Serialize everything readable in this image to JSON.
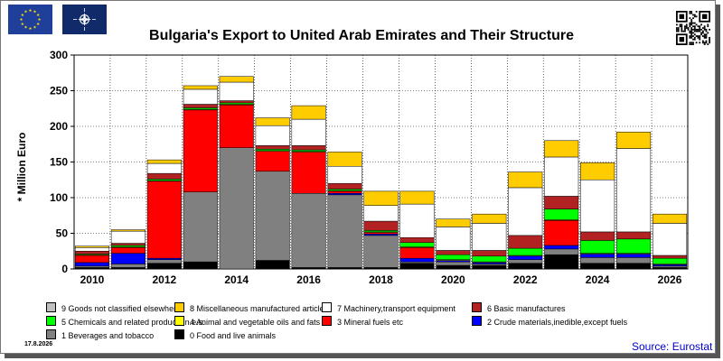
{
  "header": {
    "title": "Bulgaria's Export to United Arab Emirates and Their Structure"
  },
  "footer": {
    "date": "17.8.2026",
    "source": "Source: Eurostat"
  },
  "colors": {
    "background": "#ffffff",
    "plot_area": "#ffffff",
    "grid": "#000000",
    "source_text": "#0000cc",
    "eu_flag": "#1f3f9a",
    "eu_stars": "#ffdd00",
    "nato_flag": "#102a6a"
  },
  "icons": [
    "eu-flag-icon",
    "nato-flag-icon",
    "qr-code-icon"
  ],
  "chart_data": {
    "type": "bar",
    "stacked": true,
    "title": "Bulgaria's Export to United Arab Emirates and Their Structure",
    "xlabel": "",
    "ylabel": "* Million Euro",
    "ylim": [
      0,
      300
    ],
    "yticks": [
      0,
      50,
      100,
      150,
      200,
      250,
      300
    ],
    "grid": true,
    "legend_position": "bottom",
    "categories": [
      "2010",
      "2011",
      "2012",
      "2013",
      "2014",
      "2015",
      "2016",
      "2017",
      "2018",
      "2019",
      "2020",
      "2021",
      "2022",
      "2023",
      "2024",
      "2025",
      "2026"
    ],
    "xtick_labels": [
      "2010",
      "2012",
      "2014",
      "2016",
      "2018",
      "2020",
      "2022",
      "2024",
      "2026"
    ],
    "series": [
      {
        "name": "0 Food and live animals",
        "color": "#000000",
        "values": [
          2,
          2,
          8,
          10,
          0,
          12,
          2,
          2,
          2,
          8,
          5,
          5,
          8,
          20,
          8,
          8,
          2
        ]
      },
      {
        "name": "1 Beverages and tobacco",
        "color": "#808080",
        "values": [
          2,
          5,
          5,
          98,
          170,
          125,
          104,
          102,
          45,
          2,
          5,
          2,
          5,
          8,
          8,
          8,
          2
        ]
      },
      {
        "name": "2 Crude materials,inedible,except fuels",
        "color": "#0000ff",
        "values": [
          5,
          15,
          2,
          0,
          0,
          0,
          0,
          2,
          2,
          5,
          2,
          2,
          5,
          5,
          5,
          5,
          2
        ]
      },
      {
        "name": "3 Mineral fuels etc",
        "color": "#ff0000",
        "values": [
          10,
          8,
          108,
          115,
          60,
          28,
          58,
          3,
          2,
          15,
          0,
          0,
          0,
          35,
          0,
          0,
          0
        ]
      },
      {
        "name": "4 Animal and vegetable oils and fats",
        "color": "#ffff00",
        "values": [
          1,
          1,
          1,
          1,
          1,
          1,
          1,
          1,
          1,
          1,
          1,
          1,
          1,
          1,
          1,
          1,
          1
        ]
      },
      {
        "name": "5 Chemicals and related products,n.e.s.",
        "color": "#00ff00",
        "values": [
          1,
          2,
          2,
          2,
          2,
          2,
          2,
          2,
          2,
          6,
          7,
          8,
          10,
          15,
          18,
          20,
          8
        ]
      },
      {
        "name": "6 Basic manufactures",
        "color": "#b22222",
        "values": [
          4,
          3,
          8,
          5,
          3,
          5,
          6,
          8,
          13,
          7,
          6,
          8,
          18,
          18,
          12,
          10,
          4
        ]
      },
      {
        "name": "7 Machinery,transport equipment",
        "color": "#ffffff",
        "values": [
          5,
          17,
          14,
          21,
          26,
          28,
          37,
          24,
          22,
          47,
          33,
          38,
          67,
          55,
          73,
          117,
          45
        ]
      },
      {
        "name": "8 Miscellaneous manufactured articles",
        "color": "#ffcc00",
        "values": [
          2,
          2,
          5,
          5,
          8,
          11,
          19,
          20,
          20,
          18,
          11,
          13,
          22,
          23,
          24,
          23,
          13
        ]
      },
      {
        "name": "9 Goods not classified elsewhere",
        "color": "#c0c0c0",
        "values": [
          0,
          0,
          0,
          0,
          0,
          0,
          0,
          0,
          0,
          0,
          0,
          0,
          0,
          0,
          0,
          0,
          0
        ]
      }
    ]
  }
}
